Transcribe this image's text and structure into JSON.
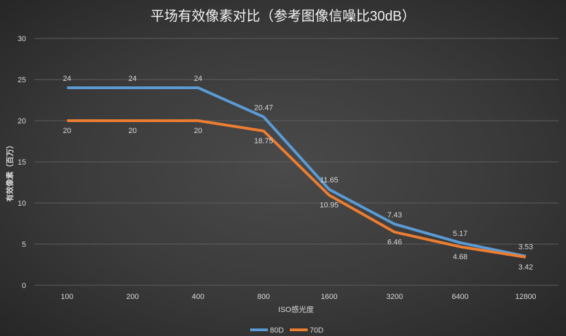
{
  "chart_data": {
    "type": "line",
    "title": "平场有效像素对比（参考图像信噪比30dB）",
    "xlabel": "ISO感光度",
    "ylabel": "有效像素（百万）",
    "categories": [
      "100",
      "200",
      "400",
      "800",
      "1600",
      "3200",
      "6400",
      "12800"
    ],
    "ylim": [
      0,
      30
    ],
    "yticks": [
      "0",
      "5",
      "10",
      "15",
      "20",
      "25",
      "30"
    ],
    "grid": true,
    "legend": "bottom",
    "series": [
      {
        "name": "80D",
        "color": "#5b9bd5",
        "values": [
          24,
          24,
          24,
          20.47,
          11.65,
          7.43,
          5.17,
          3.53
        ],
        "labels": [
          "24",
          "24",
          "24",
          "20.47",
          "11.65",
          "7.43",
          "5.17",
          "3.53"
        ]
      },
      {
        "name": "70D",
        "color": "#ed7d31",
        "values": [
          20,
          20,
          20,
          18.75,
          10.95,
          6.46,
          4.68,
          3.42
        ],
        "labels": [
          "20",
          "20",
          "20",
          "18.75",
          "10.95",
          "6.46",
          "4.68",
          "3.42"
        ]
      }
    ]
  }
}
